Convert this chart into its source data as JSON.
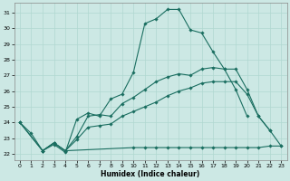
{
  "xlabel": "Humidex (Indice chaleur)",
  "background_color": "#cce8e4",
  "grid_color": "#b0d8d0",
  "line_color": "#1a6e60",
  "xlim": [
    -0.5,
    23.5
  ],
  "ylim": [
    21.6,
    31.6
  ],
  "yticks": [
    22,
    23,
    24,
    25,
    26,
    27,
    28,
    29,
    30,
    31
  ],
  "xticks": [
    0,
    1,
    2,
    3,
    4,
    5,
    6,
    7,
    8,
    9,
    10,
    11,
    12,
    13,
    14,
    15,
    16,
    17,
    18,
    19,
    20,
    21,
    22,
    23
  ],
  "lines": [
    {
      "x": [
        0,
        1,
        2,
        3,
        4,
        5,
        6,
        7,
        8,
        9,
        10,
        11,
        12,
        13,
        14,
        15,
        16,
        17,
        18,
        19,
        20
      ],
      "y": [
        24.0,
        23.3,
        22.2,
        22.6,
        22.1,
        24.2,
        24.6,
        24.4,
        25.5,
        25.8,
        27.2,
        30.3,
        30.6,
        31.2,
        31.2,
        29.9,
        29.7,
        28.5,
        27.4,
        26.1,
        24.4
      ]
    },
    {
      "x": [
        2,
        3,
        4,
        10,
        11,
        12,
        13,
        14,
        15,
        16,
        17,
        18,
        19,
        20,
        21,
        22,
        23
      ],
      "y": [
        22.2,
        22.7,
        22.2,
        22.4,
        22.4,
        22.4,
        22.4,
        22.4,
        22.4,
        22.4,
        22.4,
        22.4,
        22.4,
        22.4,
        22.4,
        22.5,
        22.5
      ]
    },
    {
      "x": [
        0,
        2,
        3,
        4,
        5,
        6,
        7,
        8,
        9,
        10,
        11,
        12,
        13,
        14,
        15,
        16,
        17,
        18,
        19,
        20,
        21,
        22
      ],
      "y": [
        24.0,
        22.2,
        22.7,
        22.2,
        23.1,
        24.4,
        24.5,
        24.4,
        25.2,
        25.6,
        26.1,
        26.6,
        26.9,
        27.1,
        27.0,
        27.4,
        27.5,
        27.4,
        27.4,
        26.1,
        24.4,
        23.5
      ]
    },
    {
      "x": [
        0,
        2,
        3,
        4,
        5,
        6,
        7,
        8,
        9,
        10,
        11,
        12,
        13,
        14,
        15,
        16,
        17,
        18,
        19,
        20,
        21,
        22,
        23
      ],
      "y": [
        24.0,
        22.2,
        22.7,
        22.2,
        22.9,
        23.7,
        23.8,
        23.9,
        24.4,
        24.7,
        25.0,
        25.3,
        25.7,
        26.0,
        26.2,
        26.5,
        26.6,
        26.6,
        26.6,
        25.8,
        24.4,
        23.5,
        22.5
      ]
    }
  ]
}
